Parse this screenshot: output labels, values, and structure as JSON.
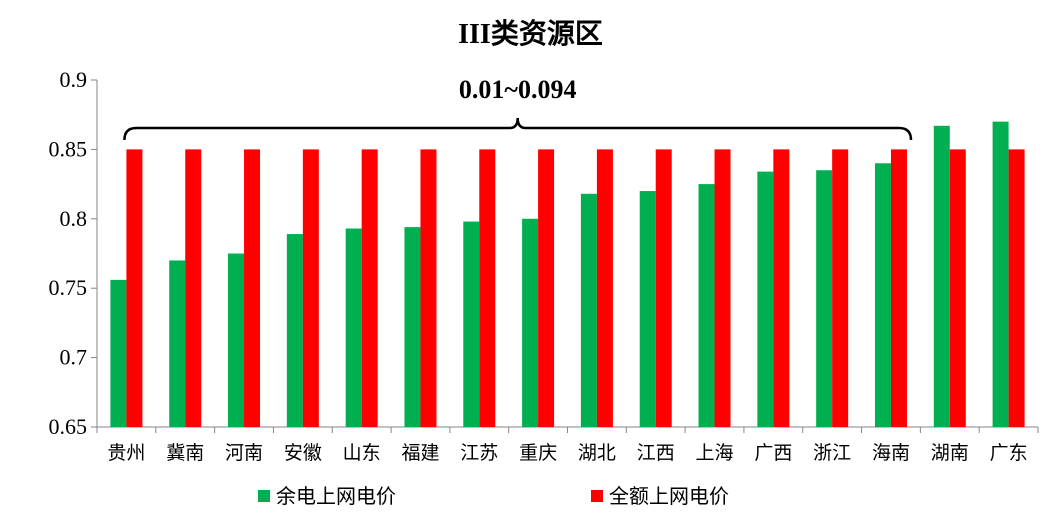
{
  "chart_data": {
    "type": "bar",
    "title": "III类资源区",
    "categories": [
      "贵州",
      "冀南",
      "河南",
      "安徽",
      "山东",
      "福建",
      "江苏",
      "重庆",
      "湖北",
      "江西",
      "上海",
      "广西",
      "浙江",
      "海南",
      "湖南",
      "广东"
    ],
    "series": [
      {
        "name": "余电上网电价",
        "color": "#00B050",
        "values": [
          0.756,
          0.77,
          0.775,
          0.789,
          0.793,
          0.794,
          0.798,
          0.8,
          0.818,
          0.82,
          0.825,
          0.834,
          0.835,
          0.84,
          0.867,
          0.87
        ]
      },
      {
        "name": "全额上网电价",
        "color": "#FF0000",
        "values": [
          0.85,
          0.85,
          0.85,
          0.85,
          0.85,
          0.85,
          0.85,
          0.85,
          0.85,
          0.85,
          0.85,
          0.85,
          0.85,
          0.85,
          0.85,
          0.85
        ]
      }
    ],
    "ylim": [
      0.65,
      0.9
    ],
    "yticks": [
      "0.65",
      "0.7",
      "0.75",
      "0.8",
      "0.85",
      "0.9"
    ],
    "xlabel": "",
    "ylabel": "",
    "grid": false,
    "legend_position": "bottom",
    "annotation": {
      "text": "0.01~0.094",
      "from_category": "贵州",
      "to_category": "海南"
    }
  }
}
